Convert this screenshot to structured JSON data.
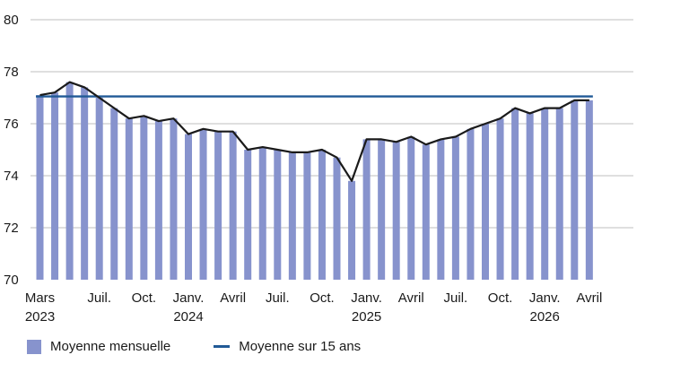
{
  "chart_data": {
    "type": "bar",
    "colors": {
      "bar": "#8793cd",
      "line": "#1a1a1a",
      "avg": "#215a96",
      "grid": "#bfbfbf"
    },
    "ylim": [
      70,
      80
    ],
    "yticks": [
      70,
      72,
      74,
      76,
      78,
      80
    ],
    "x": [
      "2023-03",
      "2023-04",
      "2023-05",
      "2023-06",
      "2023-07",
      "2023-08",
      "2023-09",
      "2023-10",
      "2023-11",
      "2023-12",
      "2024-01",
      "2024-02",
      "2024-03",
      "2024-04",
      "2024-05",
      "2024-06",
      "2024-07",
      "2024-08",
      "2024-09",
      "2024-10",
      "2024-11",
      "2024-12",
      "2025-01",
      "2025-02",
      "2025-03",
      "2025-04",
      "2025-05",
      "2025-06",
      "2025-07",
      "2025-08",
      "2025-09",
      "2025-10",
      "2025-11",
      "2025-12",
      "2026-01",
      "2026-02",
      "2026-03",
      "2026-04"
    ],
    "xtick_labels": [
      {
        "month": "2023-03",
        "line1": "Mars",
        "line2": "2023"
      },
      {
        "month": "2023-07",
        "line1": "Juil.",
        "line2": ""
      },
      {
        "month": "2023-10",
        "line1": "Oct.",
        "line2": ""
      },
      {
        "month": "2024-01",
        "line1": "Janv.",
        "line2": "2024"
      },
      {
        "month": "2024-04",
        "line1": "Avril",
        "line2": ""
      },
      {
        "month": "2024-07",
        "line1": "Juil.",
        "line2": ""
      },
      {
        "month": "2024-10",
        "line1": "Oct.",
        "line2": ""
      },
      {
        "month": "2025-01",
        "line1": "Janv.",
        "line2": "2025"
      },
      {
        "month": "2025-04",
        "line1": "Avril",
        "line2": ""
      },
      {
        "month": "2025-07",
        "line1": "Juil.",
        "line2": ""
      },
      {
        "month": "2025-10",
        "line1": "Oct.",
        "line2": ""
      },
      {
        "month": "2026-01",
        "line1": "Janv.",
        "line2": "2026"
      },
      {
        "month": "2026-04",
        "line1": "Avril",
        "line2": ""
      }
    ],
    "series": [
      {
        "name": "Moyenne mensuelle",
        "type": "bar",
        "values": [
          77.1,
          77.2,
          77.6,
          77.4,
          77.0,
          76.6,
          76.2,
          76.3,
          76.1,
          76.2,
          75.6,
          75.8,
          75.7,
          75.7,
          75.0,
          75.1,
          75.0,
          74.9,
          74.9,
          75.0,
          74.7,
          73.8,
          75.4,
          75.4,
          75.3,
          75.5,
          75.2,
          75.4,
          75.5,
          75.8,
          76.0,
          76.2,
          76.6,
          76.4,
          76.6,
          76.6,
          76.9,
          76.9
        ]
      },
      {
        "name": "Moyenne sur 15 ans",
        "type": "line",
        "value": 77.05
      }
    ],
    "trend_line_values": [
      77.1,
      77.2,
      77.6,
      77.4,
      77.0,
      76.6,
      76.2,
      76.3,
      76.1,
      76.2,
      75.6,
      75.8,
      75.7,
      75.7,
      75.0,
      75.1,
      75.0,
      74.9,
      74.9,
      75.0,
      74.7,
      73.8,
      75.4,
      75.4,
      75.3,
      75.5,
      75.2,
      75.4,
      75.5,
      75.8,
      76.0,
      76.2,
      76.6,
      76.4,
      76.6,
      76.6,
      76.9,
      76.9
    ]
  },
  "legend": {
    "bar_label": "Moyenne mensuelle",
    "line_label": "Moyenne sur 15 ans"
  }
}
